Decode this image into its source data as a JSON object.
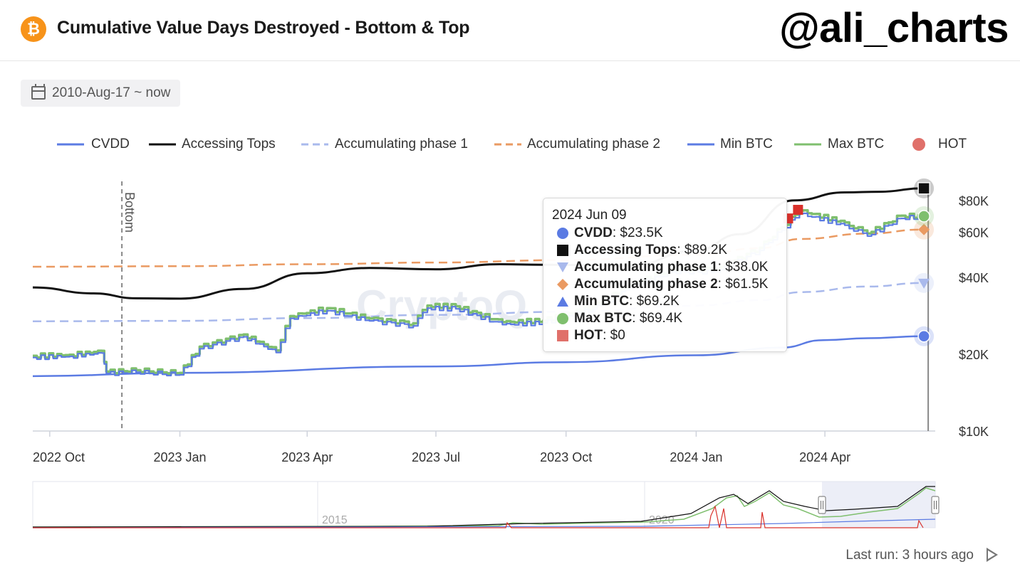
{
  "header": {
    "logo_glyph": "₿",
    "title": "Cumulative Value Days Destroyed - Bottom & Top",
    "handle": "@ali_charts"
  },
  "date_range": {
    "label": "2010-Aug-17 ~ now",
    "icon": "calendar-icon"
  },
  "legend": [
    {
      "label": "CVDD",
      "color": "#5b7be3",
      "style": "solid"
    },
    {
      "label": "Accessing Tops",
      "color": "#111111",
      "style": "solid"
    },
    {
      "label": "Accumulating phase 1",
      "color": "#a9b9ec",
      "style": "dashed"
    },
    {
      "label": "Accumulating phase 2",
      "color": "#ea9a62",
      "style": "dashed"
    },
    {
      "label": "Min BTC",
      "color": "#5b7be3",
      "style": "solid"
    },
    {
      "label": "Max BTC",
      "color": "#7fbf6e",
      "style": "solid"
    },
    {
      "label": "HOT",
      "color": "#e0706a",
      "style": "dot"
    }
  ],
  "annotations": {
    "bottom_label": "Bottom"
  },
  "tooltip": {
    "date": "2024 Jun 09",
    "rows": [
      {
        "name": "CVDD",
        "value": "$23.5K",
        "marker": "circle",
        "color": "#5b7be3"
      },
      {
        "name": "Accessing Tops",
        "value": "$89.2K",
        "marker": "square",
        "color": "#111111"
      },
      {
        "name": "Accumulating phase 1",
        "value": "$38.0K",
        "marker": "triangle-down",
        "color": "#a9b9ec"
      },
      {
        "name": "Accumulating phase 2",
        "value": "$61.5K",
        "marker": "diamond",
        "color": "#ea9a62"
      },
      {
        "name": "Min BTC",
        "value": "$69.2K",
        "marker": "triangle-up",
        "color": "#5b7be3"
      },
      {
        "name": "Max BTC",
        "value": "$69.4K",
        "marker": "circle",
        "color": "#7fbf6e"
      },
      {
        "name": "HOT",
        "value": "$0",
        "marker": "square",
        "color": "#e0706a"
      }
    ]
  },
  "navigator": {
    "labels": [
      "2015",
      "2020"
    ]
  },
  "footer": {
    "last_run": "Last run: 3 hours ago",
    "icon": "play-icon"
  },
  "chart_data": {
    "type": "line",
    "y_scale": "log",
    "ylim": [
      10000,
      95000
    ],
    "y_ticks": [
      10000,
      20000,
      40000,
      60000,
      80000
    ],
    "y_tick_labels": [
      "$10K",
      "$20K",
      "$40K",
      "$60K",
      "$80K"
    ],
    "x_range": [
      "2022-09-19",
      "2024-06-18"
    ],
    "x_ticks": [
      "2022-10-01",
      "2023-01-01",
      "2023-04-01",
      "2023-07-01",
      "2023-10-01",
      "2024-01-01",
      "2024-04-01"
    ],
    "x_tick_labels": [
      "2022 Oct",
      "2023 Jan",
      "2023 Apr",
      "2023 Jul",
      "2023 Oct",
      "2024 Jan",
      "2024 Apr"
    ],
    "bottom_marker_date": "2022-11-21",
    "series": [
      {
        "name": "CVDD",
        "points": [
          [
            "2022-09-19",
            16400
          ],
          [
            "2023-01-01",
            16900
          ],
          [
            "2023-07-01",
            17900
          ],
          [
            "2023-10-01",
            18600
          ],
          [
            "2024-01-01",
            19800
          ],
          [
            "2024-03-01",
            21200
          ],
          [
            "2024-03-31",
            22700
          ],
          [
            "2024-05-01",
            23100
          ],
          [
            "2024-06-09",
            23500
          ]
        ]
      },
      {
        "name": "Accessing Tops",
        "points": [
          [
            "2022-09-19",
            36500
          ],
          [
            "2022-11-01",
            34600
          ],
          [
            "2022-12-01",
            33100
          ],
          [
            "2023-01-01",
            33000
          ],
          [
            "2023-02-15",
            36000
          ],
          [
            "2023-04-01",
            41500
          ],
          [
            "2023-05-15",
            43500
          ],
          [
            "2023-07-01",
            43000
          ],
          [
            "2023-08-15",
            45000
          ],
          [
            "2023-09-15",
            44800
          ],
          [
            "2023-11-15",
            44400
          ],
          [
            "2024-01-01",
            51000
          ],
          [
            "2024-02-01",
            59000
          ],
          [
            "2024-03-10",
            80000
          ],
          [
            "2024-04-15",
            86000
          ],
          [
            "2024-05-10",
            86500
          ],
          [
            "2024-06-09",
            89200
          ]
        ]
      },
      {
        "name": "Accumulating phase 1",
        "points": [
          [
            "2022-09-19",
            26900
          ],
          [
            "2023-01-01",
            27000
          ],
          [
            "2023-04-01",
            27700
          ],
          [
            "2023-07-01",
            28500
          ],
          [
            "2023-10-01",
            29300
          ],
          [
            "2024-01-01",
            31000
          ],
          [
            "2024-02-15",
            32500
          ],
          [
            "2024-03-15",
            35000
          ],
          [
            "2024-05-01",
            36800
          ],
          [
            "2024-06-09",
            38000
          ]
        ]
      },
      {
        "name": "Accumulating phase 2",
        "points": [
          [
            "2022-09-19",
            44000
          ],
          [
            "2023-01-01",
            44200
          ],
          [
            "2023-04-01",
            45000
          ],
          [
            "2023-07-01",
            45700
          ],
          [
            "2023-10-01",
            46700
          ],
          [
            "2024-01-01",
            49000
          ],
          [
            "2024-02-15",
            52000
          ],
          [
            "2024-03-15",
            56500
          ],
          [
            "2024-05-01",
            59300
          ],
          [
            "2024-06-09",
            61500
          ]
        ]
      },
      {
        "name": "Min BTC",
        "points": [
          [
            "2022-09-19",
            19400
          ],
          [
            "2022-10-15",
            19600
          ],
          [
            "2022-11-07",
            20200
          ],
          [
            "2022-11-10",
            16800
          ],
          [
            "2022-12-01",
            17000
          ],
          [
            "2023-01-01",
            16600
          ],
          [
            "2023-01-15",
            21000
          ],
          [
            "2023-02-15",
            23400
          ],
          [
            "2023-03-10",
            20300
          ],
          [
            "2023-03-20",
            27600
          ],
          [
            "2023-04-15",
            29600
          ],
          [
            "2023-05-15",
            27000
          ],
          [
            "2023-06-15",
            25800
          ],
          [
            "2023-06-25",
            30300
          ],
          [
            "2023-07-15",
            30100
          ],
          [
            "2023-08-17",
            26100
          ],
          [
            "2023-09-15",
            26500
          ],
          [
            "2023-10-20",
            30000
          ],
          [
            "2023-11-15",
            36500
          ],
          [
            "2023-12-15",
            42000
          ],
          [
            "2024-01-15",
            41900
          ],
          [
            "2024-02-15",
            51000
          ],
          [
            "2024-03-14",
            71000
          ],
          [
            "2024-04-15",
            64000
          ],
          [
            "2024-05-01",
            58000
          ],
          [
            "2024-05-25",
            68000
          ],
          [
            "2024-06-09",
            69200
          ]
        ]
      },
      {
        "name": "Max BTC",
        "points": [
          [
            "2022-09-19",
            19700
          ],
          [
            "2022-10-15",
            19900
          ],
          [
            "2022-11-07",
            20600
          ],
          [
            "2022-11-10",
            17100
          ],
          [
            "2022-12-01",
            17300
          ],
          [
            "2023-01-01",
            16900
          ],
          [
            "2023-01-15",
            21400
          ],
          [
            "2023-02-15",
            23900
          ],
          [
            "2023-03-10",
            20700
          ],
          [
            "2023-03-20",
            28200
          ],
          [
            "2023-04-15",
            30300
          ],
          [
            "2023-05-15",
            27600
          ],
          [
            "2023-06-15",
            26400
          ],
          [
            "2023-06-25",
            31000
          ],
          [
            "2023-07-15",
            30800
          ],
          [
            "2023-08-17",
            26700
          ],
          [
            "2023-09-15",
            27100
          ],
          [
            "2023-10-20",
            30700
          ],
          [
            "2023-11-15",
            37300
          ],
          [
            "2023-12-15",
            43000
          ],
          [
            "2024-01-15",
            42900
          ],
          [
            "2024-02-15",
            52200
          ],
          [
            "2024-03-14",
            73000
          ],
          [
            "2024-04-15",
            65600
          ],
          [
            "2024-05-01",
            59400
          ],
          [
            "2024-05-25",
            69700
          ],
          [
            "2024-06-09",
            69400
          ]
        ]
      },
      {
        "name": "HOT",
        "points": [
          [
            "2024-03-06",
            68000
          ],
          [
            "2024-03-13",
            73500
          ]
        ]
      }
    ]
  }
}
